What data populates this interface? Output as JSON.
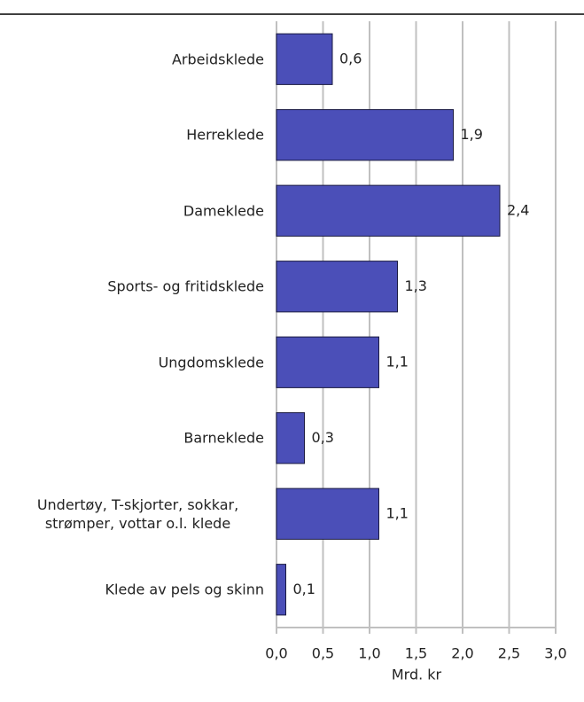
{
  "chart_data": {
    "type": "bar",
    "orientation": "horizontal",
    "categories": [
      "Arbeidsklede",
      "Herreklede",
      "Dameklede",
      "Sports- og fritidsklede",
      "Ungdomsklede",
      "Barneklede",
      "Undertøy, T-skjorter, sokkar, strømper, vottar o.l. klede",
      "Klede av pels og skinn"
    ],
    "values": [
      0.6,
      1.9,
      2.4,
      1.3,
      1.1,
      0.3,
      1.1,
      0.1
    ],
    "value_labels": [
      "0,6",
      "1,9",
      "2,4",
      "1,3",
      "1,1",
      "0,3",
      "1,1",
      "0,1"
    ],
    "color": "#4b4fb8",
    "x_label": "Mrd. kr",
    "xlim": [
      0,
      3
    ],
    "xticks": [
      {
        "value": 0,
        "label": "0,0"
      },
      {
        "value": 0.5,
        "label": "0,5"
      },
      {
        "value": 1,
        "label": "1,0"
      },
      {
        "value": 1.5,
        "label": "1,5"
      },
      {
        "value": 2,
        "label": "2,0"
      },
      {
        "value": 2.5,
        "label": "2,5"
      },
      {
        "value": 3,
        "label": "3,0"
      }
    ],
    "grid": true
  }
}
